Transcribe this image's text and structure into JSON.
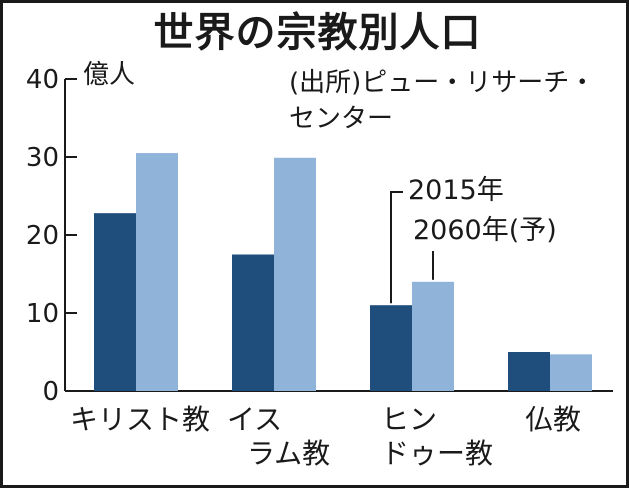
{
  "chart_data": {
    "type": "bar",
    "title": "世界の宗教別人口",
    "unit_label": "億人",
    "source_lines": [
      "(出所)ピュー・リサーチ・",
      "センター"
    ],
    "categories": [
      [
        "キリスト教"
      ],
      [
        "イス",
        "ラム教"
      ],
      [
        "ヒン",
        "ドゥー教"
      ],
      [
        "仏教"
      ]
    ],
    "series": [
      {
        "name": "2015年",
        "values": [
          22.8,
          17.5,
          11.0,
          5.0
        ],
        "color": "#1f4e7d"
      },
      {
        "name": "2060年(予)",
        "values": [
          30.5,
          29.9,
          14.0,
          4.7
        ],
        "color": "#8fb3d9"
      }
    ],
    "ylim": [
      0,
      40
    ],
    "yticks": [
      0,
      10,
      20,
      30,
      40
    ],
    "grid": false,
    "legend_placement": "callout above Hindu bars"
  }
}
